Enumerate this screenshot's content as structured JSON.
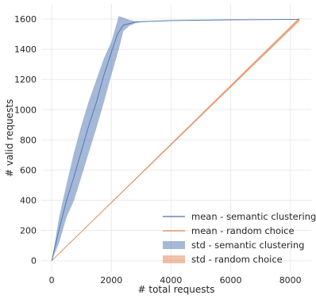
{
  "chart_data": {
    "type": "line",
    "title": "",
    "xlabel": "# total requests",
    "ylabel": "# valid requests",
    "xlim": [
      -350,
      8700
    ],
    "ylim": [
      -75,
      1700
    ],
    "xticks": [
      0,
      2000,
      4000,
      6000,
      8000
    ],
    "xtick_labels": [
      "0",
      "2000",
      "4000",
      "6000",
      "8000"
    ],
    "yticks": [
      0,
      200,
      400,
      600,
      800,
      1000,
      1200,
      1400,
      1600
    ],
    "ytick_labels": [
      "0",
      "200",
      "400",
      "600",
      "800",
      "1000",
      "1200",
      "1400",
      "1600"
    ],
    "grid": true,
    "legend_position": "bottom-right",
    "series": [
      {
        "name": "mean - semantic clustering",
        "kind": "mean",
        "color": "#4c72b0",
        "x": [
          0,
          250,
          500,
          750,
          1000,
          1250,
          1500,
          1750,
          2000,
          2200,
          2400,
          2600,
          2800,
          3000,
          4000,
          5000,
          6000,
          7000,
          8300
        ],
        "y": [
          0,
          210,
          400,
          560,
          730,
          900,
          1050,
          1230,
          1380,
          1500,
          1560,
          1570,
          1580,
          1583,
          1590,
          1593,
          1595,
          1596,
          1598
        ]
      },
      {
        "name": "mean - random choice",
        "kind": "mean",
        "color": "#dd8452",
        "x": [
          0,
          8300
        ],
        "y": [
          0,
          1598
        ]
      },
      {
        "name": "std - semantic clustering",
        "kind": "band",
        "color": "#4c72b0",
        "x": [
          0,
          250,
          500,
          750,
          1000,
          1250,
          1500,
          1750,
          2000,
          2250,
          2400,
          2600,
          2800,
          3000,
          4000,
          5000,
          6000,
          7000,
          8300
        ],
        "upper": [
          0,
          290,
          510,
          720,
          900,
          1060,
          1200,
          1340,
          1450,
          1620,
          1610,
          1595,
          1585,
          1585,
          1592,
          1594,
          1596,
          1597,
          1598
        ],
        "lower": [
          0,
          120,
          290,
          400,
          560,
          720,
          880,
          1050,
          1230,
          1400,
          1520,
          1555,
          1572,
          1580,
          1588,
          1592,
          1594,
          1595,
          1598
        ]
      },
      {
        "name": "std - random choice",
        "kind": "band",
        "color": "#dd8452",
        "x": [
          0,
          8300
        ],
        "upper": [
          0,
          1598
        ],
        "lower": [
          0,
          1598
        ],
        "spread": [
          0,
          14
        ]
      }
    ]
  }
}
